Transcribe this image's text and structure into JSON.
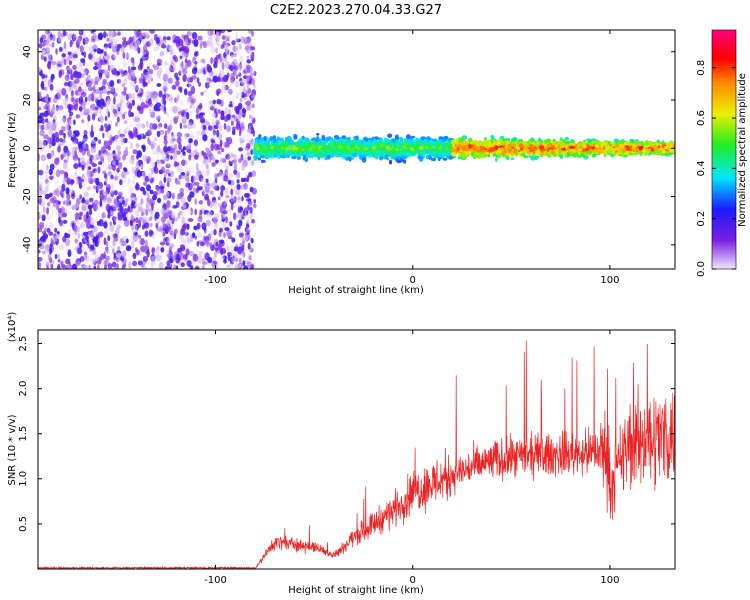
{
  "title": "C2E2.2023.270.04.33.G27",
  "chart_data": [
    {
      "type": "heatmap",
      "xlabel": "Height of straight line (km)",
      "ylabel": "Frequency (Hz)",
      "xlim": [
        -190,
        133
      ],
      "ylim": [
        -50,
        49
      ],
      "x_ticks": [
        -100,
        0,
        100
      ],
      "y_ticks": [
        -40,
        -20,
        0,
        20,
        40
      ],
      "colorbar": {
        "label": "Normalized spectral amplitude",
        "range": [
          0,
          0.95
        ],
        "ticks": [
          "0.0",
          "0.2",
          "0.4",
          "0.6",
          "0.8"
        ],
        "colormap": [
          "#f0e6ff",
          "#7b1fe0",
          "#1a1aff",
          "#00e5ff",
          "#22ee22",
          "#eeee00",
          "#ff8800",
          "#ff0000",
          "#ff0080"
        ]
      },
      "regions": [
        {
          "x_range": [
            -190,
            -80
          ],
          "freq_range": [
            -50,
            49
          ],
          "amplitude": "low, scattered (0.0-0.25)"
        },
        {
          "x_range": [
            -80,
            133
          ],
          "freq_range": [
            -8,
            8
          ],
          "center_freq": 0,
          "amplitude": "0.2-0.95, peak near center for x > 20"
        }
      ]
    },
    {
      "type": "line",
      "xlabel": "Height of straight line (km)",
      "ylabel": "SNR (10 * v/v)",
      "y_multiplier": "(x10⁴)",
      "xlim": [
        -190,
        133
      ],
      "ylim": [
        0,
        2.65
      ],
      "x_ticks": [
        -100,
        0,
        100
      ],
      "y_ticks": [
        "0.5",
        "1.0",
        "1.5",
        "2.0",
        "2.5"
      ],
      "color": "#ee2222",
      "trend": {
        "x": [
          -190,
          -80,
          -70,
          -50,
          -40,
          -30,
          -10,
          0,
          20,
          40,
          60,
          80,
          98,
          100,
          110,
          120,
          133
        ],
        "y": [
          0.0,
          0.0,
          0.3,
          0.25,
          0.15,
          0.35,
          0.65,
          0.85,
          1.05,
          1.2,
          1.25,
          1.28,
          1.3,
          0.9,
          1.4,
          1.45,
          1.5
        ]
      }
    }
  ]
}
